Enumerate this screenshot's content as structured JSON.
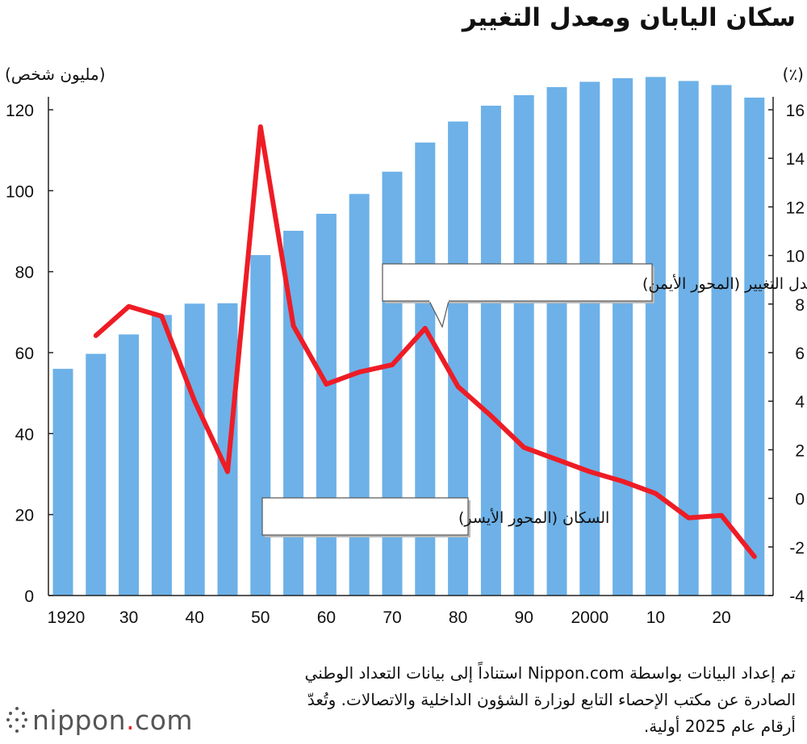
{
  "title": "سكان اليابان ومعدل التغيير",
  "left_unit": "(مليون شخص)",
  "right_unit": "(٪)",
  "note_lines": [
    "تم إعداد البيانات بواسطة Nippon.com استناداً إلى بيانات التعداد الوطني",
    "الصادرة عن مكتب الإحصاء التابع لوزارة الشؤون الداخلية والاتصالات. وتُعدّ",
    "أرقام عام 2025 أولية."
  ],
  "logo": {
    "name": "nippon",
    "dot": ".",
    "tld": "com"
  },
  "chart_data": {
    "type": "bar",
    "x_tick_labels": [
      "1920",
      "30",
      "40",
      "50",
      "60",
      "70",
      "80",
      "90",
      "2000",
      "10",
      "20"
    ],
    "left_axis": {
      "ylim": [
        0,
        120
      ],
      "ticks": [
        "0",
        "20",
        "40",
        "60",
        "80",
        "100",
        "120"
      ]
    },
    "right_axis": {
      "ylim": [
        -4,
        16
      ],
      "ticks": [
        "-4",
        "-2",
        "0",
        "2",
        "4",
        "6",
        "8",
        "10",
        "12",
        "14",
        "16"
      ]
    },
    "grid": false,
    "series": [
      {
        "name": "السكان (المحور الأيسر)",
        "type": "bar",
        "axis": "left",
        "color": "#6db1e8",
        "x": [
          1920,
          1925,
          1930,
          1935,
          1940,
          1945,
          1950,
          1955,
          1960,
          1965,
          1970,
          1975,
          1980,
          1985,
          1990,
          1995,
          2000,
          2005,
          2010,
          2015,
          2020,
          2025
        ],
        "values": [
          56.0,
          59.7,
          64.5,
          69.3,
          72.1,
          72.2,
          84.1,
          90.1,
          94.3,
          99.2,
          104.7,
          111.9,
          117.1,
          121.0,
          123.6,
          125.6,
          126.9,
          127.8,
          128.1,
          127.1,
          126.1,
          123.0
        ]
      },
      {
        "name": "معدل التغيير (المحور الأيمن)",
        "type": "line",
        "axis": "right",
        "color": "#ee1c25",
        "x": [
          1925,
          1930,
          1935,
          1940,
          1945,
          1950,
          1955,
          1960,
          1965,
          1970,
          1975,
          1980,
          1985,
          1990,
          1995,
          2000,
          2005,
          2010,
          2015,
          2020,
          2025
        ],
        "values": [
          6.7,
          7.9,
          7.5,
          4.0,
          1.1,
          15.3,
          7.1,
          4.7,
          5.2,
          5.5,
          7.0,
          4.6,
          3.4,
          2.1,
          1.6,
          1.1,
          0.7,
          0.2,
          -0.8,
          -0.7,
          -2.4
        ]
      }
    ]
  }
}
